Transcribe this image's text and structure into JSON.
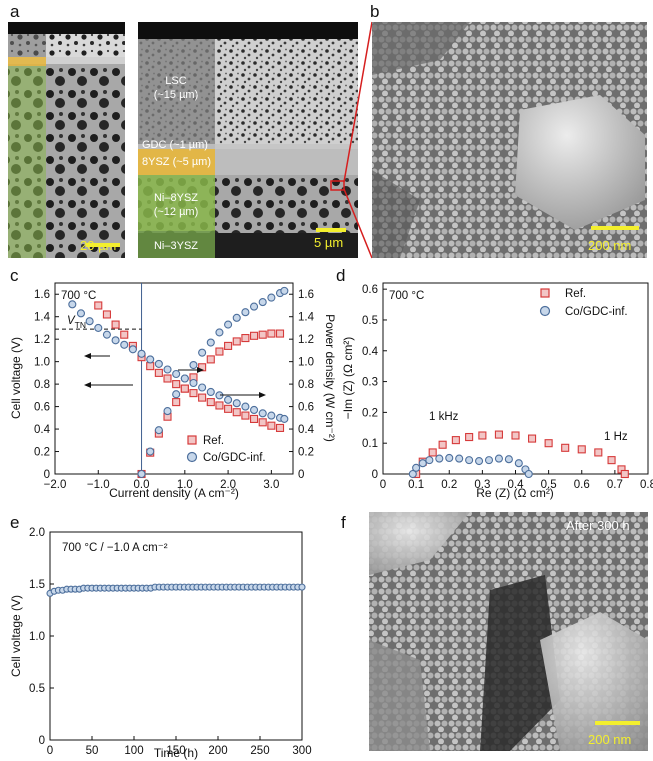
{
  "figure": {
    "panels": [
      "a",
      "b",
      "c",
      "d",
      "e",
      "f"
    ]
  },
  "panel_a": {
    "layer_labels": [
      "LSC",
      "(~15 µm)",
      "GDC (~1 µm)",
      "8YSZ (~5 µm)",
      "Ni–8YSZ",
      "(~12 µm)",
      "Ni–3YSZ"
    ],
    "scale_left": "20 µm",
    "scale_right": "5 µm"
  },
  "panel_b": {
    "scale": "200 nm"
  },
  "panel_f": {
    "scale": "200 nm",
    "annotation": "After 300 h"
  },
  "colors": {
    "ref": "#d63a3a",
    "ref_fill": "#f2c6c6",
    "co": "#4d6f9c",
    "co_fill": "#c7d7ea",
    "lsc": "#7d7d7d",
    "gdc": "#bbbbbb",
    "ysz": "#e6b53a",
    "ni": "#88b64a",
    "scalebar": "#f3ef2e"
  },
  "chart_data": [
    {
      "panel": "c",
      "type": "line",
      "annotation": "700 °C",
      "xlabel": "Current density (A cm⁻²)",
      "ylabel": "Cell voltage (V)",
      "y2label": "Power density (W cm⁻²)",
      "xlim": [
        -2.0,
        3.5
      ],
      "ylim": [
        0,
        1.7
      ],
      "y2lim": [
        0,
        1.7
      ],
      "xticks": [
        "−2.0",
        "−1.0",
        "0.0",
        "1.0",
        "2.0",
        "3.0"
      ],
      "yticks": [
        "0",
        "0.2",
        "0.4",
        "0.6",
        "0.8",
        "1.0",
        "1.2",
        "1.4",
        "1.6"
      ],
      "y2ticks": [
        "0",
        "0.2",
        "0.4",
        "0.6",
        "0.8",
        "1.0",
        "1.2",
        "1.4",
        "1.6"
      ],
      "vtn": 1.29,
      "vtn_label": "V",
      "vtn_sub": "TN",
      "legend": [
        "Ref.",
        "Co/GDC-inf."
      ],
      "series": [
        {
          "name": "Ref.",
          "quantity": "voltage",
          "x": [
            -1.0,
            -0.8,
            -0.6,
            -0.4,
            -0.2,
            0.0,
            0.2,
            0.4,
            0.6,
            0.8,
            1.0,
            1.2,
            1.4,
            1.6,
            1.8,
            2.0,
            2.2,
            2.4,
            2.6,
            2.8,
            3.0,
            3.2
          ],
          "y": [
            1.5,
            1.42,
            1.33,
            1.24,
            1.14,
            1.04,
            0.96,
            0.9,
            0.85,
            0.8,
            0.76,
            0.72,
            0.68,
            0.64,
            0.61,
            0.58,
            0.55,
            0.52,
            0.49,
            0.46,
            0.43,
            0.41
          ]
        },
        {
          "name": "Ref.",
          "quantity": "power",
          "x": [
            0.0,
            0.2,
            0.4,
            0.6,
            0.8,
            1.0,
            1.2,
            1.4,
            1.6,
            1.8,
            2.0,
            2.2,
            2.4,
            2.6,
            2.8,
            3.0,
            3.2
          ],
          "y": [
            0.0,
            0.19,
            0.36,
            0.51,
            0.64,
            0.76,
            0.86,
            0.95,
            1.02,
            1.09,
            1.14,
            1.18,
            1.21,
            1.23,
            1.24,
            1.25,
            1.25
          ]
        },
        {
          "name": "Co/GDC-inf.",
          "quantity": "voltage",
          "x": [
            -1.6,
            -1.4,
            -1.2,
            -1.0,
            -0.8,
            -0.6,
            -0.4,
            -0.2,
            0.0,
            0.2,
            0.4,
            0.6,
            0.8,
            1.0,
            1.2,
            1.4,
            1.6,
            1.8,
            2.0,
            2.2,
            2.4,
            2.6,
            2.8,
            3.0,
            3.2,
            3.3
          ],
          "y": [
            1.51,
            1.43,
            1.36,
            1.3,
            1.24,
            1.19,
            1.15,
            1.11,
            1.07,
            1.02,
            0.98,
            0.93,
            0.89,
            0.85,
            0.81,
            0.77,
            0.73,
            0.7,
            0.66,
            0.63,
            0.6,
            0.57,
            0.54,
            0.52,
            0.5,
            0.49
          ]
        },
        {
          "name": "Co/GDC-inf.",
          "quantity": "power",
          "x": [
            0.0,
            0.2,
            0.4,
            0.6,
            0.8,
            1.0,
            1.2,
            1.4,
            1.6,
            1.8,
            2.0,
            2.2,
            2.4,
            2.6,
            2.8,
            3.0,
            3.2,
            3.3
          ],
          "y": [
            0.0,
            0.2,
            0.39,
            0.56,
            0.71,
            0.85,
            0.97,
            1.08,
            1.17,
            1.26,
            1.33,
            1.39,
            1.44,
            1.49,
            1.53,
            1.57,
            1.61,
            1.63
          ]
        }
      ]
    },
    {
      "panel": "d",
      "type": "scatter",
      "annotation": "700 °C",
      "xlabel": "Re (Z) (Ω cm²)",
      "ylabel": "−Im (Z) (Ω cm²)",
      "xlim": [
        0,
        0.8
      ],
      "ylim": [
        0,
        0.62
      ],
      "xticks": [
        "0",
        "0.1",
        "0.2",
        "0.3",
        "0.4",
        "0.5",
        "0.6",
        "0.7",
        "0.8"
      ],
      "yticks": [
        "0",
        "0.1",
        "0.2",
        "0.3",
        "0.4",
        "0.5",
        "0.6"
      ],
      "labels": [
        "1 kHz",
        "1 Hz"
      ],
      "legend": [
        "Ref.",
        "Co/GDC-inf."
      ],
      "series": [
        {
          "name": "Ref.",
          "x": [
            0.1,
            0.12,
            0.15,
            0.18,
            0.22,
            0.26,
            0.3,
            0.35,
            0.4,
            0.45,
            0.5,
            0.55,
            0.6,
            0.65,
            0.69,
            0.72,
            0.73
          ],
          "y": [
            0.0,
            0.04,
            0.07,
            0.095,
            0.11,
            0.12,
            0.125,
            0.128,
            0.125,
            0.115,
            0.1,
            0.085,
            0.08,
            0.07,
            0.045,
            0.015,
            0.0
          ]
        },
        {
          "name": "Co/GDC-inf.",
          "x": [
            0.09,
            0.1,
            0.12,
            0.14,
            0.17,
            0.2,
            0.23,
            0.26,
            0.29,
            0.32,
            0.35,
            0.38,
            0.41,
            0.43,
            0.44
          ],
          "y": [
            0.0,
            0.02,
            0.035,
            0.045,
            0.05,
            0.052,
            0.05,
            0.045,
            0.042,
            0.045,
            0.05,
            0.048,
            0.035,
            0.015,
            0.0
          ]
        }
      ]
    },
    {
      "panel": "e",
      "type": "scatter",
      "annotation": "700 °C / −1.0 A cm⁻²",
      "xlabel": "Time (h)",
      "ylabel": "Cell voltage (V)",
      "xlim": [
        0,
        300
      ],
      "ylim": [
        0,
        2.0
      ],
      "xticks": [
        "0",
        "50",
        "100",
        "150",
        "200",
        "250",
        "300"
      ],
      "yticks": [
        "0",
        "0.5",
        "1.0",
        "1.5",
        "2.0"
      ],
      "series": [
        {
          "name": "Co/GDC-inf.",
          "x": [
            0,
            5,
            10,
            15,
            20,
            25,
            30,
            35,
            40,
            45,
            50,
            55,
            60,
            65,
            70,
            75,
            80,
            85,
            90,
            95,
            100,
            105,
            110,
            115,
            120,
            125,
            130,
            135,
            140,
            145,
            150,
            155,
            160,
            165,
            170,
            175,
            180,
            185,
            190,
            195,
            200,
            205,
            210,
            215,
            220,
            225,
            230,
            235,
            240,
            245,
            250,
            255,
            260,
            265,
            270,
            275,
            280,
            285,
            290,
            295,
            300
          ],
          "y": [
            1.41,
            1.43,
            1.44,
            1.44,
            1.45,
            1.45,
            1.45,
            1.45,
            1.46,
            1.46,
            1.46,
            1.46,
            1.46,
            1.46,
            1.46,
            1.46,
            1.46,
            1.46,
            1.46,
            1.46,
            1.46,
            1.46,
            1.46,
            1.46,
            1.46,
            1.47,
            1.47,
            1.47,
            1.47,
            1.47,
            1.47,
            1.47,
            1.47,
            1.47,
            1.47,
            1.47,
            1.47,
            1.47,
            1.47,
            1.47,
            1.47,
            1.47,
            1.47,
            1.47,
            1.47,
            1.47,
            1.47,
            1.47,
            1.47,
            1.47,
            1.47,
            1.47,
            1.47,
            1.47,
            1.47,
            1.47,
            1.47,
            1.47,
            1.47,
            1.47,
            1.47
          ]
        }
      ]
    }
  ]
}
